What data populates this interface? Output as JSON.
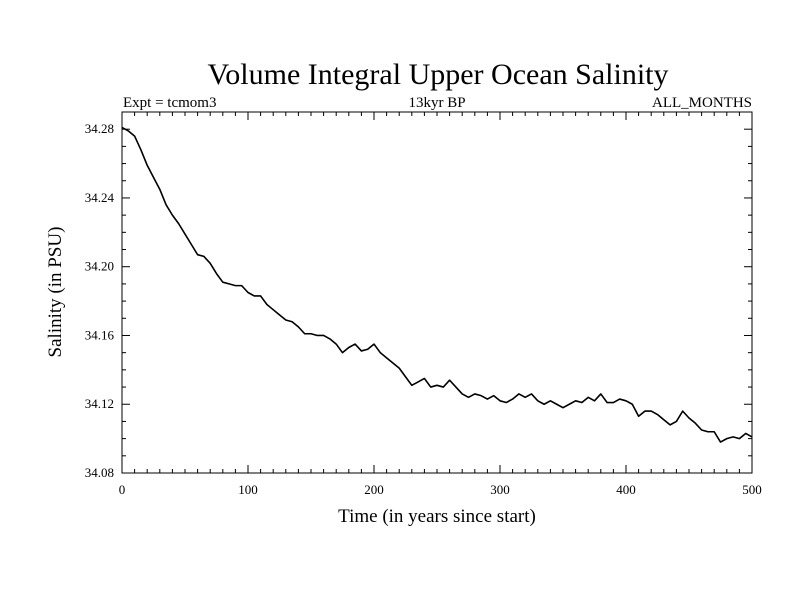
{
  "chart_data": {
    "type": "line",
    "title": "Volume Integral Upper Ocean Salinity",
    "subtitle_left": "Expt = tcmom3",
    "subtitle_center": "13kyr BP",
    "subtitle_right": "ALL_MONTHS",
    "xlabel": "Time (in years since start)",
    "ylabel": "Salinity (in PSU)",
    "xlim": [
      0,
      500
    ],
    "ylim": [
      34.08,
      34.29
    ],
    "x_ticks": [
      0,
      100,
      200,
      300,
      400,
      500
    ],
    "x_tick_labels": [
      "0",
      "100",
      "200",
      "300",
      "400",
      "500"
    ],
    "y_ticks": [
      34.08,
      34.12,
      34.16,
      34.2,
      34.24,
      34.28
    ],
    "y_tick_labels": [
      "34.08",
      "34.12",
      "34.16",
      "34.20",
      "34.24",
      "34.28"
    ],
    "grid": false,
    "series": [
      {
        "color": "#000000",
        "x": [
          0,
          5,
          10,
          15,
          20,
          25,
          30,
          35,
          40,
          45,
          50,
          55,
          60,
          65,
          70,
          75,
          80,
          85,
          90,
          95,
          100,
          105,
          110,
          115,
          120,
          125,
          130,
          135,
          140,
          145,
          150,
          155,
          160,
          165,
          170,
          175,
          180,
          185,
          190,
          195,
          200,
          205,
          210,
          215,
          220,
          225,
          230,
          235,
          240,
          245,
          250,
          255,
          260,
          265,
          270,
          275,
          280,
          285,
          290,
          295,
          300,
          305,
          310,
          315,
          320,
          325,
          330,
          335,
          340,
          345,
          350,
          355,
          360,
          365,
          370,
          375,
          380,
          385,
          390,
          395,
          400,
          405,
          410,
          415,
          420,
          425,
          430,
          435,
          440,
          445,
          450,
          455,
          460,
          465,
          470,
          475,
          480,
          485,
          490,
          495,
          500
        ],
        "values": [
          34.281,
          34.279,
          34.276,
          34.268,
          34.259,
          34.252,
          34.245,
          34.236,
          34.23,
          34.225,
          34.219,
          34.213,
          34.207,
          34.206,
          34.202,
          34.196,
          34.191,
          34.19,
          34.189,
          34.189,
          34.185,
          34.183,
          34.183,
          34.178,
          34.175,
          34.172,
          34.169,
          34.168,
          34.165,
          34.161,
          34.161,
          34.16,
          34.16,
          34.158,
          34.155,
          34.15,
          34.153,
          34.155,
          34.151,
          34.152,
          34.155,
          34.15,
          34.147,
          34.144,
          34.141,
          34.136,
          34.131,
          34.133,
          34.135,
          34.13,
          34.131,
          34.13,
          34.134,
          34.13,
          34.126,
          34.124,
          34.126,
          34.125,
          34.123,
          34.125,
          34.122,
          34.121,
          34.123,
          34.126,
          34.124,
          34.126,
          34.122,
          34.12,
          34.122,
          34.12,
          34.118,
          34.12,
          34.122,
          34.121,
          34.124,
          34.122,
          34.126,
          34.121,
          34.121,
          34.123,
          34.122,
          34.12,
          34.113,
          34.116,
          34.116,
          34.114,
          34.111,
          34.108,
          34.11,
          34.116,
          34.112,
          34.109,
          34.105,
          34.104,
          34.104,
          34.098,
          34.1,
          34.101,
          34.1,
          34.103,
          34.101
        ]
      }
    ]
  }
}
